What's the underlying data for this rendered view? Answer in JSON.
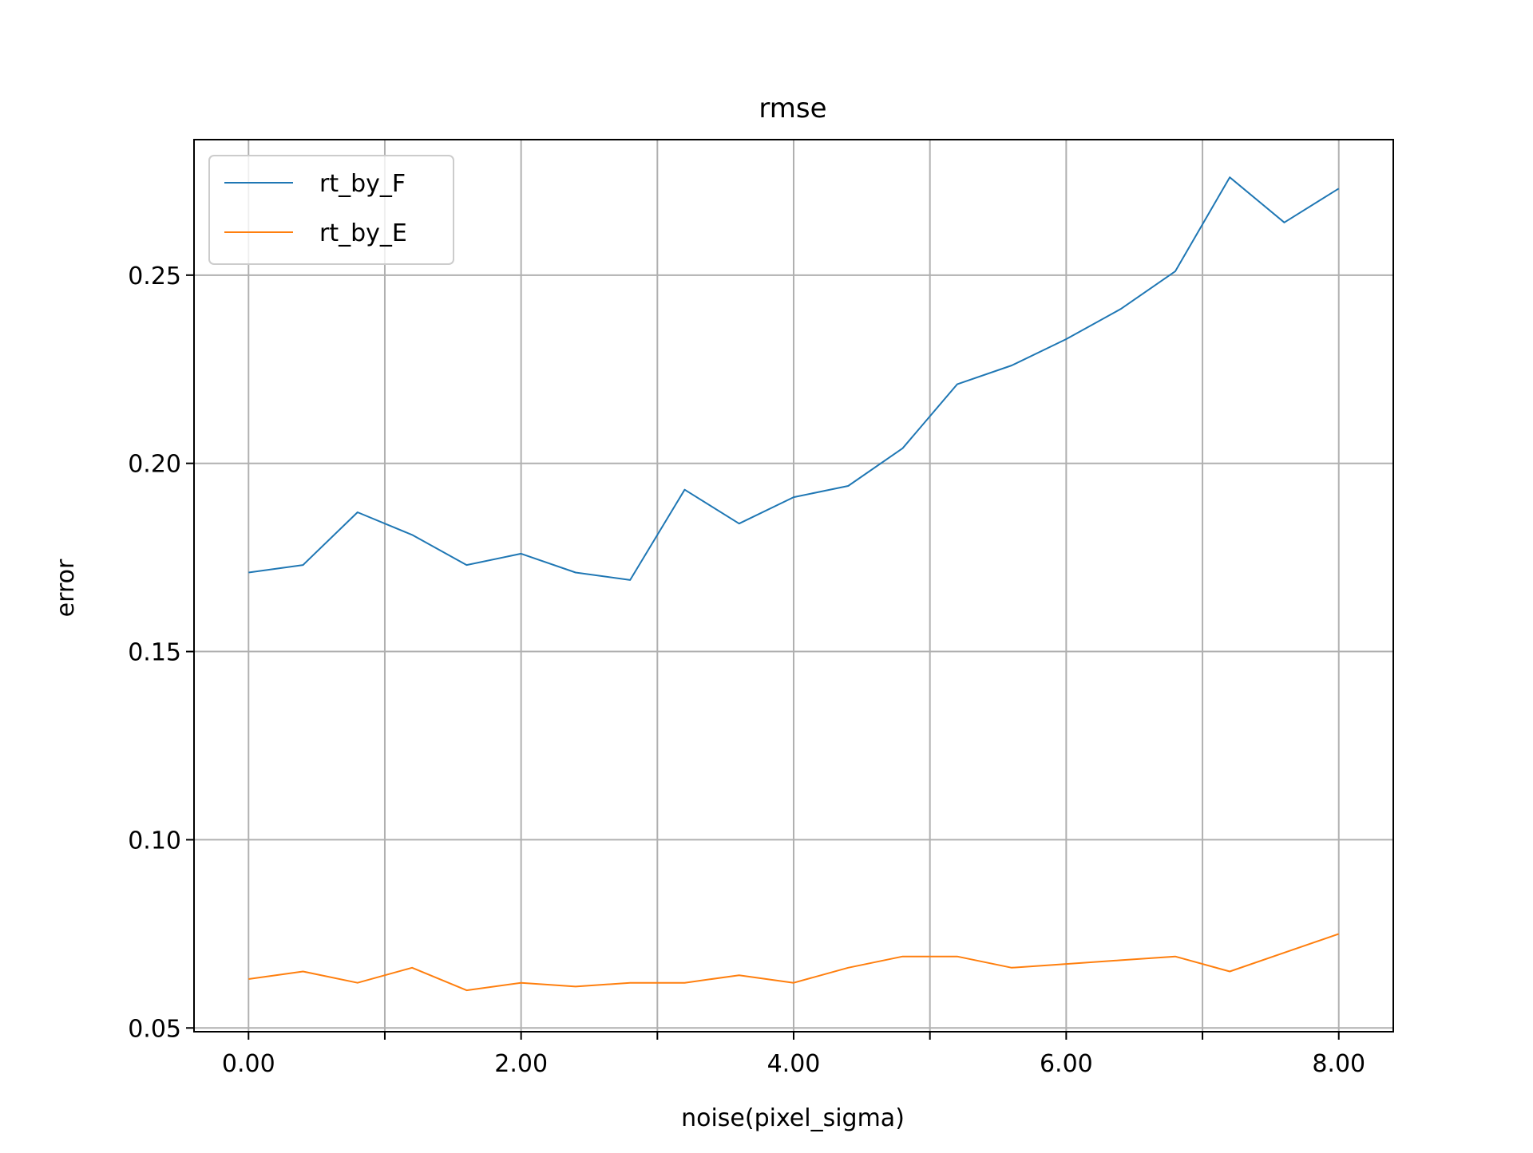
{
  "chart_data": {
    "type": "line",
    "title": "rmse",
    "xlabel": "noise(pixel_sigma)",
    "ylabel": "error",
    "xlim": [
      -0.4,
      8.4
    ],
    "ylim": [
      0.049,
      0.286
    ],
    "xticks": [
      0,
      1,
      2,
      3,
      4,
      5,
      6,
      7,
      8
    ],
    "xtick_labels": [
      "0.00",
      "",
      "2.00",
      "",
      "4.00",
      "",
      "6.00",
      "",
      "8.00"
    ],
    "yticks": [
      0.05,
      0.1,
      0.15,
      0.2,
      0.25
    ],
    "ytick_labels": [
      "0.05",
      "0.10",
      "0.15",
      "0.20",
      "0.25"
    ],
    "grid": true,
    "legend_position": "upper-left",
    "x": [
      0,
      0.4,
      0.8,
      1.2,
      1.6,
      2.0,
      2.4,
      2.8,
      3.2,
      3.6,
      4.0,
      4.4,
      4.8,
      5.2,
      5.6,
      6.0,
      6.4,
      6.8,
      7.2,
      7.6,
      8.0
    ],
    "series": [
      {
        "name": "rt_by_F",
        "color": "#1f77b4",
        "values": [
          0.171,
          0.173,
          0.187,
          0.181,
          0.173,
          0.176,
          0.171,
          0.169,
          0.193,
          0.184,
          0.191,
          0.194,
          0.204,
          0.221,
          0.226,
          0.233,
          0.241,
          0.251,
          0.276,
          0.264,
          0.273
        ]
      },
      {
        "name": "rt_by_E",
        "color": "#ff7f0e",
        "values": [
          0.063,
          0.065,
          0.062,
          0.066,
          0.06,
          0.062,
          0.061,
          0.062,
          0.062,
          0.064,
          0.062,
          0.066,
          0.069,
          0.069,
          0.066,
          0.067,
          0.068,
          0.069,
          0.065,
          0.07,
          0.075
        ]
      }
    ]
  }
}
